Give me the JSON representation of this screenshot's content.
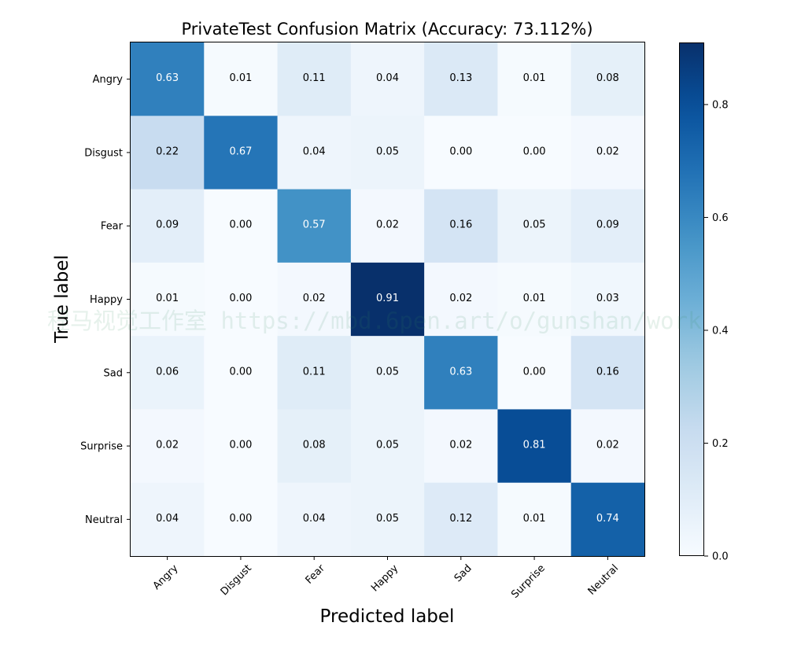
{
  "chart_data": {
    "type": "heatmap",
    "title": "PrivateTest Confusion Matrix (Accuracy: 73.112%)",
    "xlabel": "Predicted label",
    "ylabel": "True label",
    "x_categories": [
      "Angry",
      "Disgust",
      "Fear",
      "Happy",
      "Sad",
      "Surprise",
      "Neutral"
    ],
    "y_categories": [
      "Angry",
      "Disgust",
      "Fear",
      "Happy",
      "Sad",
      "Surprise",
      "Neutral"
    ],
    "values": [
      [
        0.63,
        0.01,
        0.11,
        0.04,
        0.13,
        0.01,
        0.08
      ],
      [
        0.22,
        0.67,
        0.04,
        0.05,
        0.0,
        0.0,
        0.02
      ],
      [
        0.09,
        0.0,
        0.57,
        0.02,
        0.16,
        0.05,
        0.09
      ],
      [
        0.01,
        0.0,
        0.02,
        0.91,
        0.02,
        0.01,
        0.03
      ],
      [
        0.06,
        0.0,
        0.11,
        0.05,
        0.63,
        0.0,
        0.16
      ],
      [
        0.02,
        0.0,
        0.08,
        0.05,
        0.02,
        0.81,
        0.02
      ],
      [
        0.04,
        0.0,
        0.04,
        0.05,
        0.12,
        0.01,
        0.74
      ]
    ],
    "colorbar": {
      "colormap": "Blues",
      "range": [
        0.0,
        0.91
      ],
      "ticks": [
        0.0,
        0.2,
        0.4,
        0.6,
        0.8
      ],
      "tick_labels": [
        "0.0",
        "0.2",
        "0.4",
        "0.6",
        "0.8"
      ]
    },
    "watermark": "程马视觉工作室 https://mbd.6pen.art/o/gunshan/work"
  }
}
